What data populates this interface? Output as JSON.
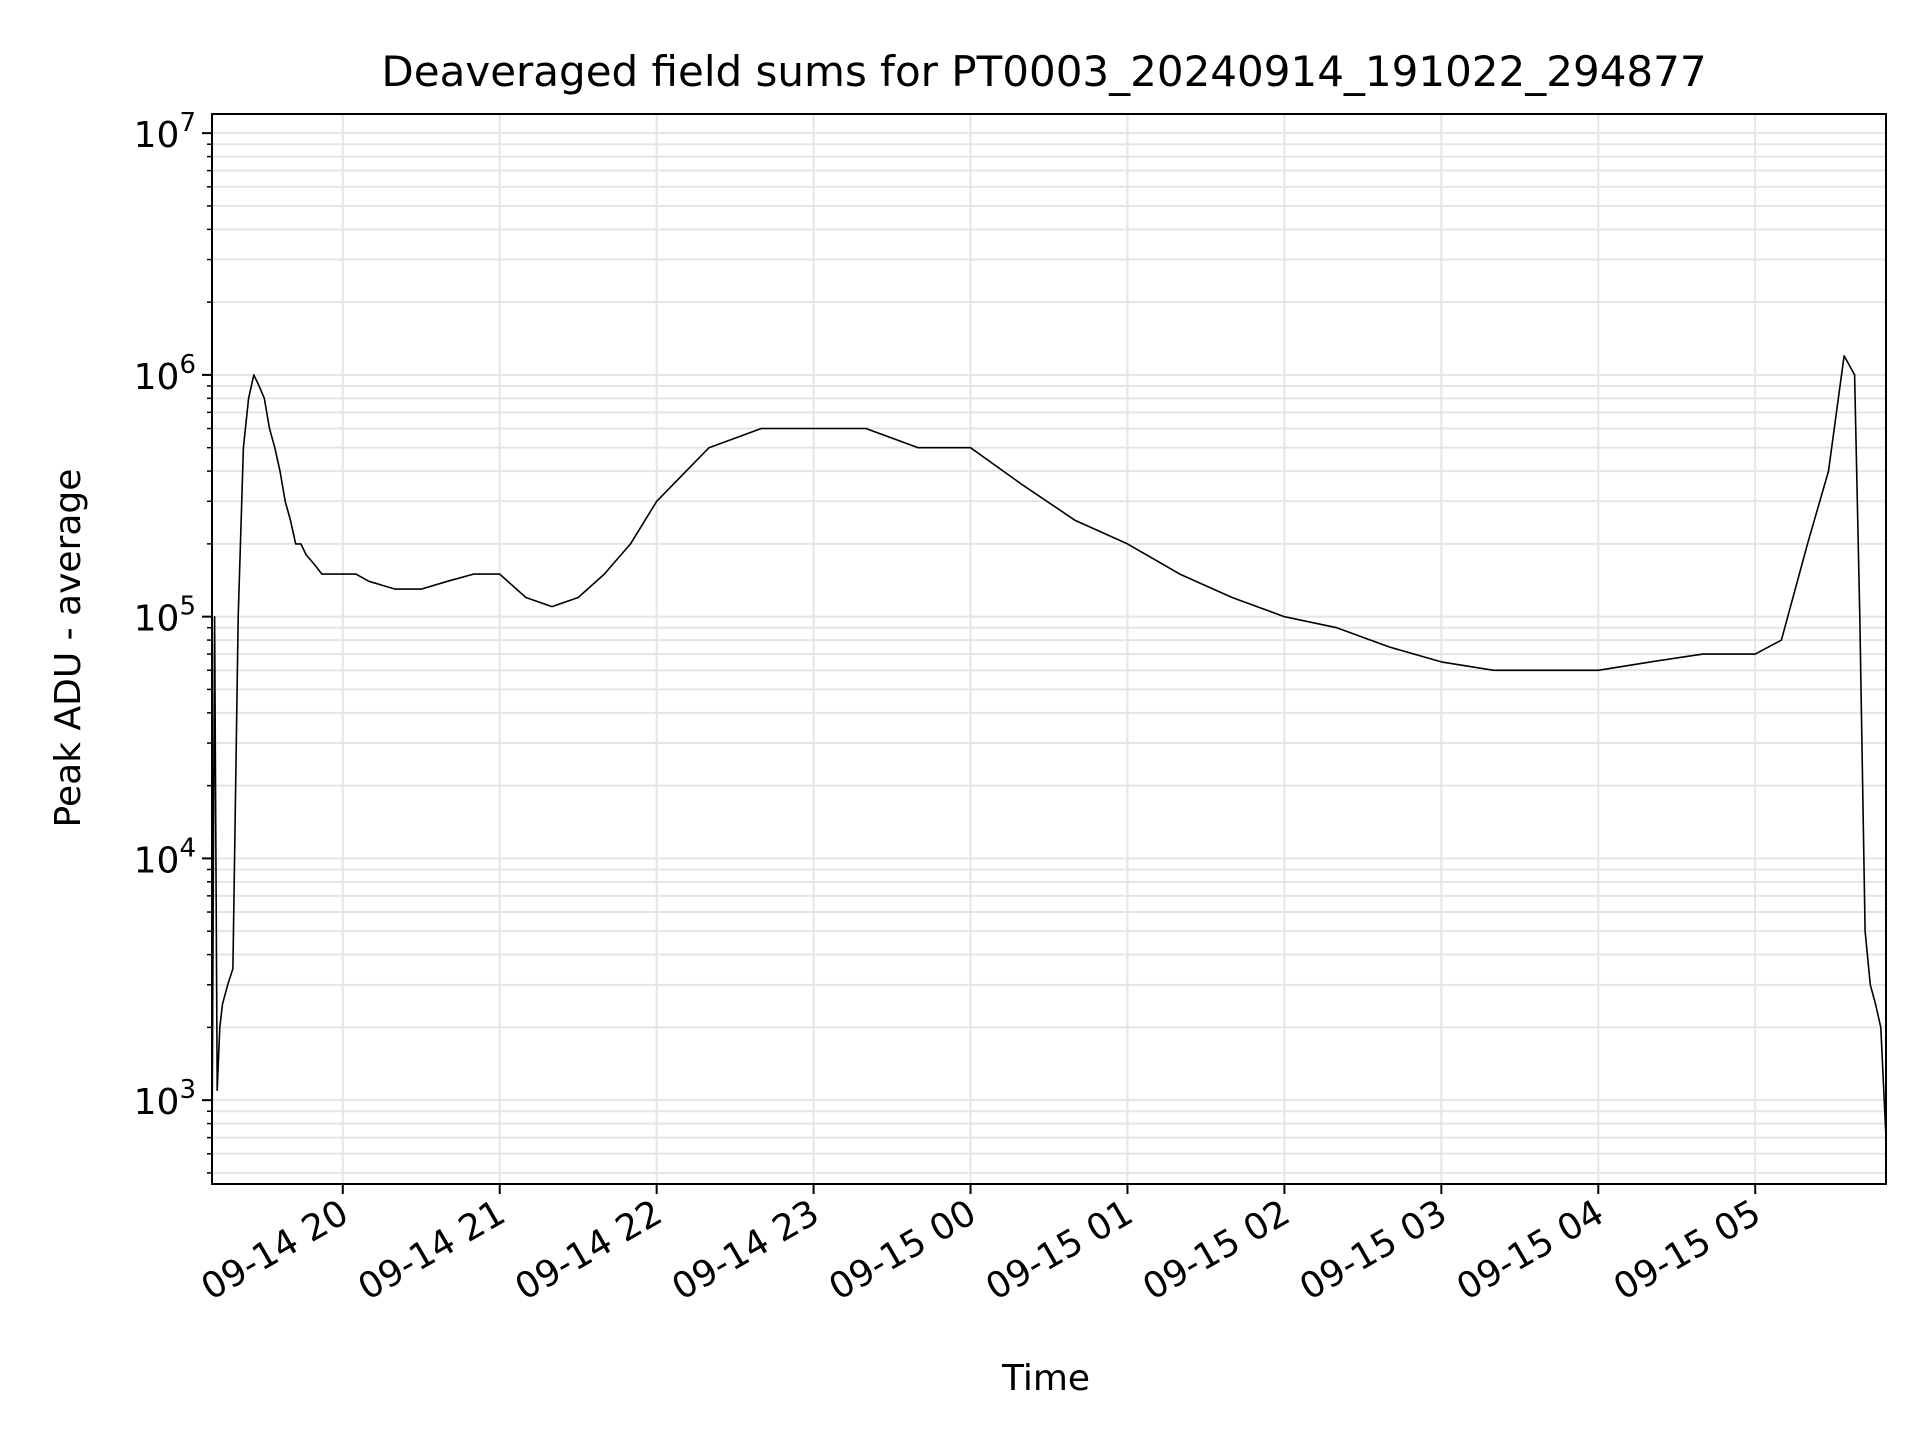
{
  "chart_data": {
    "type": "line",
    "title": "Deaveraged field sums for PT0003_20240914_191022_294877",
    "xlabel": "Time",
    "ylabel": "Peak ADU - average",
    "yscale": "log",
    "ylim": [
      450,
      12000000
    ],
    "xlim": [
      "2024-09-14 19:10",
      "2024-09-15 05:50"
    ],
    "grid": true,
    "grid_minor": true,
    "line_color": "#000000",
    "grid_color": "#e5e5e5",
    "yticks": [
      {
        "value": 1000,
        "base": "10",
        "exp": "3"
      },
      {
        "value": 10000,
        "base": "10",
        "exp": "4"
      },
      {
        "value": 100000,
        "base": "10",
        "exp": "5"
      },
      {
        "value": 1000000,
        "base": "10",
        "exp": "6"
      },
      {
        "value": 10000000,
        "base": "10",
        "exp": "7"
      }
    ],
    "xticks": [
      {
        "value": "2024-09-14 20:00",
        "label": "09-14 20"
      },
      {
        "value": "2024-09-14 21:00",
        "label": "09-14 21"
      },
      {
        "value": "2024-09-14 22:00",
        "label": "09-14 22"
      },
      {
        "value": "2024-09-14 23:00",
        "label": "09-14 23"
      },
      {
        "value": "2024-09-15 00:00",
        "label": "09-15 00"
      },
      {
        "value": "2024-09-15 01:00",
        "label": "09-15 01"
      },
      {
        "value": "2024-09-15 02:00",
        "label": "09-15 02"
      },
      {
        "value": "2024-09-15 03:00",
        "label": "09-15 03"
      },
      {
        "value": "2024-09-15 04:00",
        "label": "09-15 04"
      },
      {
        "value": "2024-09-15 05:00",
        "label": "09-15 05"
      }
    ],
    "series": [
      {
        "x": [
          "2024-09-14 19:10",
          "2024-09-14 19:11",
          "2024-09-14 19:12",
          "2024-09-14 19:13",
          "2024-09-14 19:14",
          "2024-09-14 19:16",
          "2024-09-14 19:18",
          "2024-09-14 19:20",
          "2024-09-14 19:22",
          "2024-09-14 19:24",
          "2024-09-14 19:26",
          "2024-09-14 19:28",
          "2024-09-14 19:30",
          "2024-09-14 19:32",
          "2024-09-14 19:34",
          "2024-09-14 19:36",
          "2024-09-14 19:38",
          "2024-09-14 19:40",
          "2024-09-14 19:42",
          "2024-09-14 19:44",
          "2024-09-14 19:46",
          "2024-09-14 19:48",
          "2024-09-14 19:50",
          "2024-09-14 19:52",
          "2024-09-14 19:54",
          "2024-09-14 19:56",
          "2024-09-14 20:00",
          "2024-09-14 20:05",
          "2024-09-14 20:10",
          "2024-09-14 20:20",
          "2024-09-14 20:30",
          "2024-09-14 20:40",
          "2024-09-14 20:50",
          "2024-09-14 21:00",
          "2024-09-14 21:10",
          "2024-09-14 21:20",
          "2024-09-14 21:30",
          "2024-09-14 21:40",
          "2024-09-14 21:50",
          "2024-09-14 22:00",
          "2024-09-14 22:20",
          "2024-09-14 22:40",
          "2024-09-14 23:00",
          "2024-09-14 23:20",
          "2024-09-14 23:40",
          "2024-09-15 00:00",
          "2024-09-15 00:20",
          "2024-09-15 00:40",
          "2024-09-15 01:00",
          "2024-09-15 01:20",
          "2024-09-15 01:40",
          "2024-09-15 02:00",
          "2024-09-15 02:20",
          "2024-09-15 02:40",
          "2024-09-15 03:00",
          "2024-09-15 03:20",
          "2024-09-15 03:40",
          "2024-09-15 04:00",
          "2024-09-15 04:20",
          "2024-09-15 04:40",
          "2024-09-15 05:00",
          "2024-09-15 05:10",
          "2024-09-15 05:20",
          "2024-09-15 05:28",
          "2024-09-15 05:34",
          "2024-09-15 05:38",
          "2024-09-15 05:40",
          "2024-09-15 05:42",
          "2024-09-15 05:44",
          "2024-09-15 05:46",
          "2024-09-15 05:48",
          "2024-09-15 05:50"
        ],
        "values": [
          600,
          100000,
          1100,
          2000,
          2500,
          3000,
          3500,
          100000,
          500000,
          800000,
          1000000,
          900000,
          800000,
          600000,
          500000,
          400000,
          300000,
          250000,
          200000,
          200000,
          180000,
          170000,
          160000,
          150000,
          150000,
          150000,
          150000,
          150000,
          140000,
          130000,
          130000,
          140000,
          150000,
          150000,
          120000,
          110000,
          120000,
          150000,
          200000,
          300000,
          500000,
          600000,
          600000,
          600000,
          500000,
          500000,
          350000,
          250000,
          200000,
          150000,
          120000,
          100000,
          90000,
          75000,
          65000,
          60000,
          60000,
          60000,
          65000,
          70000,
          70000,
          80000,
          200000,
          400000,
          1200000,
          1000000,
          100000,
          5000,
          3000,
          2500,
          2000,
          700
        ]
      }
    ]
  }
}
